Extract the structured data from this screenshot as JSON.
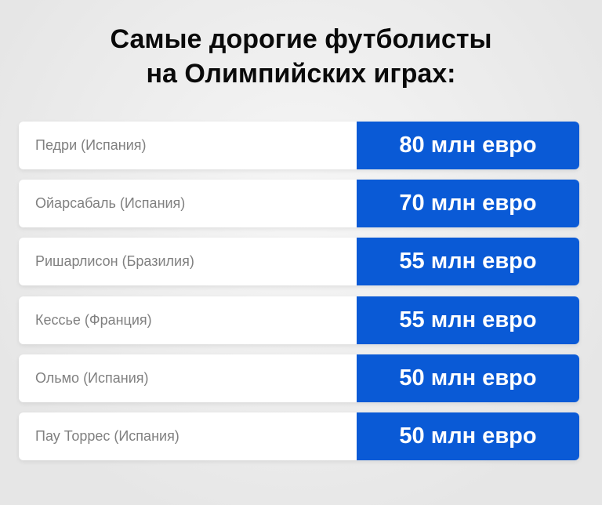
{
  "title": [
    "Самые дорогие футболисты",
    "на Олимпийских играх:"
  ],
  "accent": "#0a5ad6",
  "rows": [
    {
      "name": "Педри (Испания)",
      "value": "80 млн евро"
    },
    {
      "name": "Ойарсабаль (Испания)",
      "value": "70 млн евро"
    },
    {
      "name": "Ришарлисон (Бразилия)",
      "value": "55 млн евро"
    },
    {
      "name": "Кессье (Франция)",
      "value": "55 млн евро"
    },
    {
      "name": "Ольмо (Испания)",
      "value": "50 млн евро"
    },
    {
      "name": "Пау Торрес (Испания)",
      "value": "50 млн евро"
    }
  ]
}
